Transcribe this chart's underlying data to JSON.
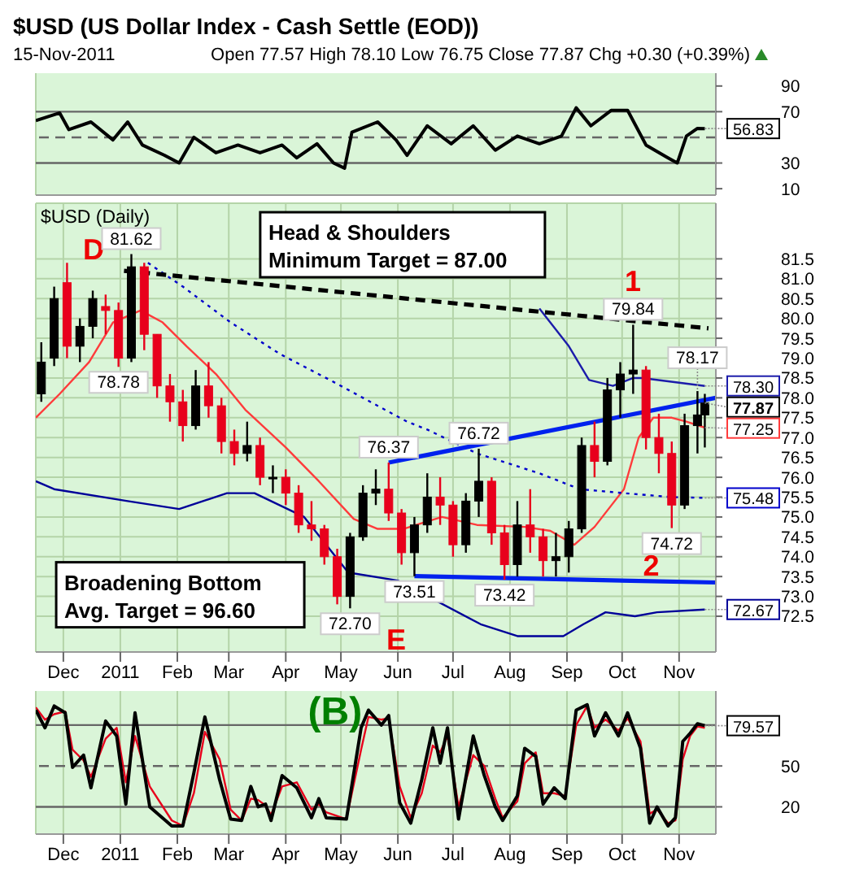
{
  "chart_data": [
    {
      "type": "line",
      "title": "$USD (US Dollar Index - Cash Settle (EOD))",
      "subtitle": "15-Nov-2011",
      "annotations": [
        "Open 77.57  High 78.10  Low 76.75  Close 77.87  Chg +0.30 (+0.39%)",
        {
          "text": "56.83",
          "x": "2011-11-15",
          "y": 56.83
        }
      ],
      "xlim": [
        "2010-11-16",
        "2011-11-21"
      ],
      "xticks": [
        {
          "value": "2010-12-01",
          "label": null
        },
        {
          "value": "2011-01-01",
          "label": null
        },
        {
          "value": "2011-02-01",
          "label": null
        },
        {
          "value": "2011-03-01",
          "label": null
        },
        {
          "value": "2011-04-01",
          "label": null
        },
        {
          "value": "2011-05-01",
          "label": null
        },
        {
          "value": "2011-06-01",
          "label": null
        },
        {
          "value": "2011-07-01",
          "label": null
        },
        {
          "value": "2011-08-01",
          "label": null
        },
        {
          "value": "2011-09-01",
          "label": null
        },
        {
          "value": "2011-10-01",
          "label": null
        },
        {
          "value": "2011-11-01",
          "label": null
        }
      ],
      "ylim": [
        5,
        100
      ],
      "yticks": [
        10,
        30,
        70,
        90
      ],
      "tick_labels": "y",
      "grid": "x",
      "marker": "none",
      "ref_lines": [
        {
          "axis": "y",
          "value": 70,
          "color": "#666666"
        },
        {
          "axis": "y",
          "value": 30,
          "color": "#666666"
        },
        {
          "axis": "y",
          "value": 50,
          "color": "#666666",
          "line_style": "dashed"
        }
      ],
      "series": [
        {
          "color": "#000000",
          "x": [
            "2010-11-16",
            "2010-11-29",
            "2010-12-04",
            "2010-12-16",
            "2010-12-28",
            "2011-01-05",
            "2011-01-13",
            "2011-01-25",
            "2011-02-02",
            "2011-02-10",
            "2011-02-22",
            "2011-03-06",
            "2011-03-18",
            "2011-03-30",
            "2011-04-07",
            "2011-04-18",
            "2011-04-27",
            "2011-05-03",
            "2011-05-07",
            "2011-05-21",
            "2011-05-31",
            "2011-06-06",
            "2011-06-17",
            "2011-06-30",
            "2011-07-12",
            "2011-07-24",
            "2011-08-05",
            "2011-08-17",
            "2011-08-29",
            "2011-09-06",
            "2011-09-14",
            "2011-09-25",
            "2011-10-04",
            "2011-10-14",
            "2011-10-26",
            "2011-10-31",
            "2011-11-05",
            "2011-11-11",
            "2011-11-15"
          ],
          "values": [
            63,
            69,
            56,
            62,
            48,
            62,
            44,
            36,
            30,
            50,
            38,
            44,
            38,
            44,
            34,
            45,
            30,
            26,
            54,
            62,
            48,
            36,
            59,
            45,
            59,
            40,
            51,
            45,
            51,
            73,
            59,
            71,
            71,
            44,
            34,
            30,
            51,
            57,
            56.83
          ]
        }
      ]
    },
    {
      "type": "candlestick",
      "annotations": [
        "$USD (Daily)",
        "Head & Shoulders\nMinimum Target = 87.00",
        "Broadening Bottom\nAvg. Target = 96.60",
        "D",
        "1",
        "2",
        "E",
        {
          "text": "81.62",
          "x": "2011-01-07",
          "y": 81.62
        },
        {
          "text": "78.78",
          "x": "2010-12-31",
          "y": 78.78
        },
        {
          "text": "76.37",
          "x": "2011-05-27",
          "y": 76.37
        },
        {
          "text": "76.72",
          "x": "2011-07-15",
          "y": 76.72
        },
        {
          "text": "79.84",
          "x": "2011-10-07",
          "y": 79.84
        },
        {
          "text": "78.17",
          "x": "2011-11-11",
          "y": 78.17
        },
        {
          "text": "73.51",
          "x": "2011-06-10",
          "y": 73.51
        },
        {
          "text": "73.42",
          "x": "2011-07-29",
          "y": 73.42
        },
        {
          "text": "72.70",
          "x": "2011-05-06",
          "y": 72.7
        },
        {
          "text": "74.72",
          "x": "2011-10-28",
          "y": 74.72
        },
        {
          "text": "78.30",
          "x": "2011-11-15",
          "y": 78.3
        },
        {
          "text": "77.87",
          "x": "2011-11-15",
          "y": 77.87
        },
        {
          "text": "77.25",
          "x": "2011-11-15",
          "y": 77.25
        },
        {
          "text": "75.48",
          "x": "2011-11-15",
          "y": 75.48
        },
        {
          "text": "72.67",
          "x": "2011-11-15",
          "y": 72.67
        }
      ],
      "xlim": [
        "2010-11-16",
        "2011-11-21"
      ],
      "xticks": [
        {
          "value": "2010-12-01",
          "label": "Dec"
        },
        {
          "value": "2011-01-01",
          "label": "2011"
        },
        {
          "value": "2011-02-01",
          "label": "Feb"
        },
        {
          "value": "2011-03-01",
          "label": "Mar"
        },
        {
          "value": "2011-04-01",
          "label": "Apr"
        },
        {
          "value": "2011-05-01",
          "label": "May"
        },
        {
          "value": "2011-06-01",
          "label": "Jun"
        },
        {
          "value": "2011-07-01",
          "label": "Jul"
        },
        {
          "value": "2011-08-01",
          "label": "Aug"
        },
        {
          "value": "2011-09-01",
          "label": "Sep"
        },
        {
          "value": "2011-10-01",
          "label": "Oct"
        },
        {
          "value": "2011-11-01",
          "label": "Nov"
        }
      ],
      "ylim": [
        71.6,
        82.9
      ],
      "yticks": [
        72.5,
        {
          "value": 73,
          "label": "73.0"
        },
        73.5,
        {
          "value": 74,
          "label": "74.0"
        },
        74.5,
        {
          "value": 75,
          "label": "75.0"
        },
        75.5,
        {
          "value": 76,
          "label": "76.0"
        },
        76.5,
        {
          "value": 77,
          "label": "77.0"
        },
        77.5,
        {
          "value": 78,
          "label": "78.0"
        },
        78.5,
        {
          "value": 79,
          "label": "79.0"
        },
        79.5,
        {
          "value": 80,
          "label": "80.0"
        },
        80.5,
        {
          "value": 81,
          "label": "81.0"
        },
        81.5
      ],
      "grid": true,
      "marker": "none",
      "x": [
        "2010-11-19",
        "2010-11-26",
        "2010-12-03",
        "2010-12-10",
        "2010-12-17",
        "2010-12-24",
        "2010-12-31",
        "2011-01-07",
        "2011-01-14",
        "2011-01-21",
        "2011-01-28",
        "2011-02-04",
        "2011-02-11",
        "2011-02-18",
        "2011-02-25",
        "2011-03-04",
        "2011-03-11",
        "2011-03-18",
        "2011-03-25",
        "2011-04-01",
        "2011-04-08",
        "2011-04-15",
        "2011-04-22",
        "2011-04-29",
        "2011-05-06",
        "2011-05-13",
        "2011-05-20",
        "2011-05-27",
        "2011-06-03",
        "2011-06-10",
        "2011-06-17",
        "2011-06-24",
        "2011-07-01",
        "2011-07-08",
        "2011-07-15",
        "2011-07-22",
        "2011-07-29",
        "2011-08-05",
        "2011-08-12",
        "2011-08-19",
        "2011-08-26",
        "2011-09-02",
        "2011-09-09",
        "2011-09-16",
        "2011-09-23",
        "2011-09-30",
        "2011-10-07",
        "2011-10-14",
        "2011-10-21",
        "2011-10-28",
        "2011-11-04",
        "2011-11-11",
        "2011-11-15"
      ],
      "ohlc": [
        [
          78.1,
          79.4,
          77.9,
          78.9
        ],
        [
          79.0,
          80.8,
          78.8,
          80.5
        ],
        [
          80.9,
          81.4,
          79.0,
          79.3
        ],
        [
          79.3,
          80.0,
          78.9,
          79.8
        ],
        [
          79.8,
          80.7,
          79.5,
          80.5
        ],
        [
          80.3,
          80.6,
          79.6,
          80.2
        ],
        [
          80.2,
          80.4,
          78.78,
          79.0
        ],
        [
          79.0,
          81.62,
          78.9,
          81.3
        ],
        [
          81.3,
          81.4,
          79.2,
          79.6
        ],
        [
          79.6,
          79.6,
          78.0,
          78.3
        ],
        [
          78.3,
          78.6,
          77.4,
          77.9
        ],
        [
          77.9,
          78.2,
          76.9,
          77.3
        ],
        [
          77.3,
          78.7,
          77.2,
          78.3
        ],
        [
          78.3,
          78.9,
          77.5,
          77.8
        ],
        [
          77.8,
          78.0,
          76.6,
          76.9
        ],
        [
          76.9,
          77.2,
          76.3,
          76.6
        ],
        [
          76.6,
          77.4,
          76.4,
          76.8
        ],
        [
          76.8,
          77.0,
          75.8,
          76.0
        ],
        [
          76.0,
          76.3,
          75.6,
          76.0
        ],
        [
          76.0,
          76.2,
          75.3,
          75.6
        ],
        [
          75.6,
          75.8,
          74.6,
          74.8
        ],
        [
          74.8,
          75.4,
          74.4,
          74.7
        ],
        [
          74.7,
          74.8,
          73.8,
          74.0
        ],
        [
          74.0,
          74.2,
          72.8,
          73.0
        ],
        [
          73.0,
          74.6,
          72.7,
          74.5
        ],
        [
          74.5,
          75.8,
          74.4,
          75.6
        ],
        [
          75.6,
          76.2,
          75.3,
          75.7
        ],
        [
          75.7,
          76.37,
          74.9,
          75.1
        ],
        [
          75.1,
          75.2,
          73.8,
          74.1
        ],
        [
          74.1,
          75.0,
          73.51,
          74.8
        ],
        [
          74.8,
          76.1,
          74.6,
          75.5
        ],
        [
          75.5,
          76.0,
          74.8,
          75.3
        ],
        [
          75.3,
          75.4,
          74.0,
          74.3
        ],
        [
          74.3,
          75.6,
          74.1,
          75.4
        ],
        [
          75.4,
          76.72,
          75.0,
          75.9
        ],
        [
          75.9,
          76.0,
          74.3,
          74.6
        ],
        [
          74.6,
          74.8,
          73.42,
          73.8
        ],
        [
          73.8,
          75.4,
          73.5,
          74.8
        ],
        [
          74.8,
          75.7,
          74.1,
          74.5
        ],
        [
          74.5,
          74.7,
          73.5,
          73.9
        ],
        [
          73.9,
          74.6,
          73.5,
          74.0
        ],
        [
          74.0,
          74.9,
          73.6,
          74.7
        ],
        [
          74.7,
          77.0,
          74.6,
          76.8
        ],
        [
          76.8,
          77.4,
          76.0,
          76.4
        ],
        [
          76.4,
          78.5,
          76.3,
          78.2
        ],
        [
          78.2,
          78.9,
          77.5,
          78.6
        ],
        [
          78.6,
          79.84,
          78.1,
          78.7
        ],
        [
          78.7,
          78.8,
          76.7,
          77.0
        ],
        [
          77.0,
          77.6,
          76.1,
          76.6
        ],
        [
          76.6,
          76.9,
          74.72,
          75.3
        ],
        [
          75.3,
          77.6,
          75.2,
          77.3
        ],
        [
          77.3,
          78.17,
          76.6,
          77.57
        ],
        [
          77.57,
          78.1,
          76.75,
          77.87
        ]
      ],
      "colors": [
        "#000000",
        "#000000",
        "#e8001c",
        "#000000",
        "#000000",
        "#e8001c",
        "#e8001c",
        "#000000",
        "#e8001c",
        "#e8001c",
        "#e8001c",
        "#e8001c",
        "#000000",
        "#e8001c",
        "#e8001c",
        "#e8001c",
        "#000000",
        "#e8001c",
        "#000000",
        "#e8001c",
        "#e8001c",
        "#e8001c",
        "#e8001c",
        "#e8001c",
        "#000000",
        "#000000",
        "#000000",
        "#e8001c",
        "#e8001c",
        "#000000",
        "#000000",
        "#e8001c",
        "#e8001c",
        "#000000",
        "#000000",
        "#e8001c",
        "#e8001c",
        "#000000",
        "#e8001c",
        "#e8001c",
        "#000000",
        "#000000",
        "#000000",
        "#e8001c",
        "#000000",
        "#000000",
        "#000000",
        "#e8001c",
        "#e8001c",
        "#e8001c",
        "#000000",
        "#000000",
        "#000000"
      ],
      "series": [
        {
          "type": "line",
          "color": "#ff3b3b",
          "x": [
            "2010-11-16",
            "2010-11-29",
            "2010-12-15",
            "2010-12-28",
            "2011-01-12",
            "2011-01-24",
            "2011-02-06",
            "2011-02-22",
            "2011-03-10",
            "2011-04-01",
            "2011-04-19",
            "2011-05-08",
            "2011-05-21",
            "2011-06-04",
            "2011-06-25",
            "2011-07-14",
            "2011-08-09",
            "2011-08-23",
            "2011-09-05",
            "2011-09-16",
            "2011-10-02",
            "2011-10-10",
            "2011-10-18",
            "2011-10-28",
            "2011-11-05",
            "2011-11-15"
          ],
          "values": [
            77.5,
            78.1,
            78.9,
            79.9,
            80.2,
            79.9,
            79.3,
            78.6,
            77.7,
            76.75,
            75.9,
            74.95,
            74.7,
            74.7,
            75.0,
            74.8,
            74.75,
            74.65,
            74.3,
            74.75,
            75.7,
            77.0,
            77.5,
            77.5,
            77.4,
            77.25
          ]
        },
        {
          "type": "line",
          "color": "#0000cc",
          "line_style": "dotted",
          "x": [
            "2011-01-16",
            "2011-02-04",
            "2011-03-02",
            "2011-03-29",
            "2011-04-25",
            "2011-05-13",
            "2011-06-06",
            "2011-06-17",
            "2011-07-14",
            "2011-08-17",
            "2011-09-08",
            "2011-10-02",
            "2011-10-28",
            "2011-11-15"
          ],
          "values": [
            81.4,
            80.8,
            79.9,
            79.1,
            78.45,
            78.0,
            77.4,
            77.2,
            76.6,
            76.1,
            75.7,
            75.6,
            75.5,
            75.48
          ]
        },
        {
          "type": "line",
          "color": "#1c1caa",
          "x": [
            "2011-08-17",
            "2011-09-02",
            "2011-09-13",
            "2011-09-26",
            "2011-10-07",
            "2011-10-12",
            "2011-11-15"
          ],
          "values": [
            80.25,
            79.3,
            78.45,
            78.3,
            78.5,
            78.5,
            78.3
          ]
        },
        {
          "type": "line",
          "color": "#000099",
          "x": [
            "2010-11-16",
            "2010-11-26",
            "2011-01-05",
            "2011-02-02",
            "2011-02-28",
            "2011-03-15",
            "2011-04-11",
            "2011-05-05",
            "2011-06-01",
            "2011-07-16",
            "2011-08-05",
            "2011-08-30",
            "2011-09-10",
            "2011-09-22",
            "2011-10-08",
            "2011-10-20",
            "2011-11-15"
          ],
          "values": [
            75.9,
            75.7,
            75.4,
            75.2,
            75.6,
            75.6,
            75.0,
            73.6,
            73.4,
            72.3,
            72.0,
            72.0,
            72.3,
            72.6,
            72.5,
            72.6,
            72.67
          ]
        },
        {
          "type": "line",
          "color": "#000000",
          "line_style": "dashed",
          "x": [
            "2011-01-03",
            "2011-11-17"
          ],
          "values": [
            81.2,
            79.75
          ]
        },
        {
          "type": "line",
          "color": "#0022ee",
          "x": [
            "2011-05-27",
            "2011-11-21"
          ],
          "values": [
            76.37,
            78.0
          ]
        },
        {
          "type": "line",
          "color": "#0022ee",
          "x": [
            "2011-06-10",
            "2011-11-21"
          ],
          "values": [
            73.51,
            73.35
          ]
        }
      ]
    },
    {
      "type": "line",
      "annotations": [
        "(B)",
        {
          "text": "79.57",
          "x": "2011-11-15",
          "y": 79.57
        }
      ],
      "xlim": [
        "2010-11-16",
        "2011-11-21"
      ],
      "xticks": [
        {
          "value": "2010-12-01",
          "label": "Dec"
        },
        {
          "value": "2011-01-01",
          "label": "2011"
        },
        {
          "value": "2011-02-01",
          "label": "Feb"
        },
        {
          "value": "2011-03-01",
          "label": "Mar"
        },
        {
          "value": "2011-04-01",
          "label": "Apr"
        },
        {
          "value": "2011-05-01",
          "label": "May"
        },
        {
          "value": "2011-06-01",
          "label": "Jun"
        },
        {
          "value": "2011-07-01",
          "label": "Jul"
        },
        {
          "value": "2011-08-01",
          "label": "Aug"
        },
        {
          "value": "2011-09-01",
          "label": "Sep"
        },
        {
          "value": "2011-10-01",
          "label": "Oct"
        },
        {
          "value": "2011-11-01",
          "label": "Nov"
        }
      ],
      "ylim": [
        0,
        105
      ],
      "yticks": [
        20,
        50
      ],
      "grid": "x",
      "marker": "none",
      "ref_lines": [
        {
          "axis": "y",
          "value": 80,
          "color": "#666666"
        },
        {
          "axis": "y",
          "value": 20,
          "color": "#666666"
        },
        {
          "axis": "y",
          "value": 50,
          "color": "#666666",
          "line_style": "dashed"
        }
      ],
      "series": [
        {
          "color": "#e8001c",
          "x": [
            "2010-11-16",
            "2010-11-21",
            "2010-11-26",
            "2010-12-02",
            "2010-12-06",
            "2010-12-12",
            "2010-12-16",
            "2010-12-24",
            "2010-12-30",
            "2011-01-04",
            "2011-01-09",
            "2011-01-17",
            "2011-01-29",
            "2011-02-04",
            "2011-02-10",
            "2011-02-16",
            "2011-02-24",
            "2011-03-02",
            "2011-03-08",
            "2011-03-13",
            "2011-03-17",
            "2011-03-21",
            "2011-03-24",
            "2011-03-30",
            "2011-04-07",
            "2011-04-15",
            "2011-04-19",
            "2011-04-23",
            "2011-05-04",
            "2011-05-12",
            "2011-05-16",
            "2011-05-23",
            "2011-05-27",
            "2011-06-02",
            "2011-06-08",
            "2011-06-14",
            "2011-06-20",
            "2011-06-24",
            "2011-06-28",
            "2011-07-04",
            "2011-07-12",
            "2011-07-18",
            "2011-07-24",
            "2011-07-28",
            "2011-08-05",
            "2011-08-09",
            "2011-08-15",
            "2011-08-19",
            "2011-08-25",
            "2011-08-31",
            "2011-09-06",
            "2011-09-12",
            "2011-09-16",
            "2011-09-22",
            "2011-09-29",
            "2011-10-04",
            "2011-10-11",
            "2011-10-16",
            "2011-10-20",
            "2011-10-26",
            "2011-10-30",
            "2011-11-03",
            "2011-11-07",
            "2011-11-11",
            "2011-11-15"
          ],
          "values": [
            93,
            84,
            88,
            90,
            62,
            54,
            42,
            70,
            78,
            38,
            72,
            35,
            10,
            6,
            30,
            75,
            55,
            18,
            10,
            26,
            25,
            21,
            14,
            35,
            38,
            18,
            22,
            16,
            11,
            62,
            86,
            84,
            85,
            35,
            12,
            30,
            65,
            60,
            72,
            20,
            58,
            50,
            26,
            12,
            24,
            52,
            60,
            30,
            30,
            28,
            80,
            94,
            78,
            84,
            76,
            85,
            68,
            15,
            18,
            8,
            10,
            55,
            72,
            79,
            78
          ]
        },
        {
          "color": "#000000",
          "x": [
            "2010-11-16",
            "2010-11-21",
            "2010-11-26",
            "2010-12-02",
            "2010-12-06",
            "2010-12-12",
            "2010-12-16",
            "2010-12-24",
            "2010-12-30",
            "2011-01-04",
            "2011-01-09",
            "2011-01-17",
            "2011-01-29",
            "2011-02-04",
            "2011-02-10",
            "2011-02-16",
            "2011-02-24",
            "2011-03-02",
            "2011-03-08",
            "2011-03-13",
            "2011-03-17",
            "2011-03-21",
            "2011-03-24",
            "2011-03-30",
            "2011-04-07",
            "2011-04-15",
            "2011-04-19",
            "2011-04-23",
            "2011-05-04",
            "2011-05-12",
            "2011-05-16",
            "2011-05-23",
            "2011-05-27",
            "2011-06-02",
            "2011-06-08",
            "2011-06-14",
            "2011-06-20",
            "2011-06-24",
            "2011-06-28",
            "2011-07-04",
            "2011-07-12",
            "2011-07-18",
            "2011-07-24",
            "2011-07-28",
            "2011-08-05",
            "2011-08-09",
            "2011-08-15",
            "2011-08-19",
            "2011-08-25",
            "2011-08-31",
            "2011-09-06",
            "2011-09-12",
            "2011-09-16",
            "2011-09-22",
            "2011-09-29",
            "2011-10-04",
            "2011-10-11",
            "2011-10-16",
            "2011-10-20",
            "2011-10-26",
            "2011-10-30",
            "2011-11-03",
            "2011-11-07",
            "2011-11-11",
            "2011-11-15"
          ],
          "values": [
            91,
            78,
            94,
            89,
            49,
            58,
            34,
            83,
            72,
            22,
            89,
            20,
            6,
            6,
            45,
            86,
            40,
            11,
            10,
            35,
            20,
            22,
            10,
            43,
            34,
            12,
            26,
            12,
            11,
            78,
            91,
            80,
            87,
            23,
            8,
            40,
            78,
            52,
            78,
            11,
            72,
            43,
            20,
            10,
            28,
            63,
            57,
            22,
            34,
            26,
            91,
            95,
            72,
            89,
            72,
            89,
            63,
            8,
            20,
            6,
            12,
            68,
            74,
            81,
            79.57
          ]
        }
      ]
    }
  ]
}
